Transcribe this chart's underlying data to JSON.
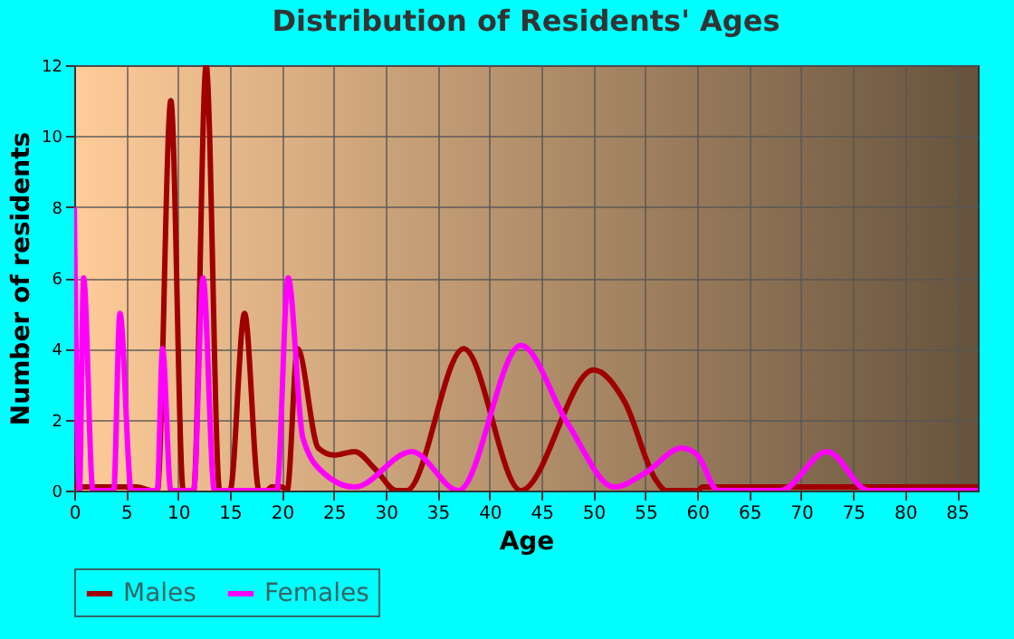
{
  "chart_data": {
    "type": "line",
    "title": "Distribution of Residents' Ages",
    "xlabel": "Age",
    "ylabel": "Number of residents",
    "xlim": [
      0,
      87
    ],
    "xticks": [
      0,
      5,
      10,
      15,
      20,
      25,
      30,
      35,
      40,
      45,
      50,
      55,
      60,
      65,
      70,
      75,
      80,
      85
    ],
    "ylim": [
      0,
      12
    ],
    "yticks": [
      0,
      2,
      4,
      6,
      8,
      10,
      12
    ],
    "grid": true,
    "legend": "bottom",
    "marker": "none",
    "line_style": "solid",
    "series": [
      {
        "name": "Males",
        "color": "#a00000",
        "x": [
          0,
          6,
          7.5,
          8,
          9.3,
          10.5,
          11.5,
          12.7,
          14,
          15,
          16.4,
          17.8,
          18.5,
          19,
          20,
          20.5,
          21.5,
          23.5,
          25,
          27,
          29,
          31,
          32,
          37.5,
          43,
          50,
          53,
          56,
          57,
          60,
          60.5,
          87
        ],
        "values": [
          0.1,
          0.1,
          0,
          0,
          11,
          0,
          0,
          12,
          0,
          0,
          5,
          0,
          0,
          0.1,
          0.1,
          0,
          4,
          1.2,
          1,
          1.1,
          0.6,
          0,
          0,
          4,
          0,
          3.4,
          2.5,
          0.3,
          0,
          0,
          0.1,
          0.1
        ]
      },
      {
        "name": "Females",
        "color": "#ff00ff",
        "x": [
          0,
          0.5,
          0.9,
          1.8,
          3.8,
          4.4,
          5.5,
          8,
          8.5,
          9.3,
          11.5,
          12.4,
          13.5,
          19.5,
          20.6,
          22,
          24,
          27,
          32.5,
          37,
          43,
          47.5,
          52,
          55,
          58.5,
          60,
          62,
          68,
          72.5,
          76.5,
          87
        ],
        "values": [
          8,
          0,
          6,
          0,
          0,
          5,
          0,
          0,
          4,
          0,
          0,
          6,
          0,
          0,
          6,
          1.5,
          0.5,
          0.1,
          1.1,
          0,
          4.1,
          1.9,
          0.1,
          0.5,
          1.2,
          1,
          0,
          0,
          1.1,
          0,
          0
        ]
      }
    ]
  }
}
